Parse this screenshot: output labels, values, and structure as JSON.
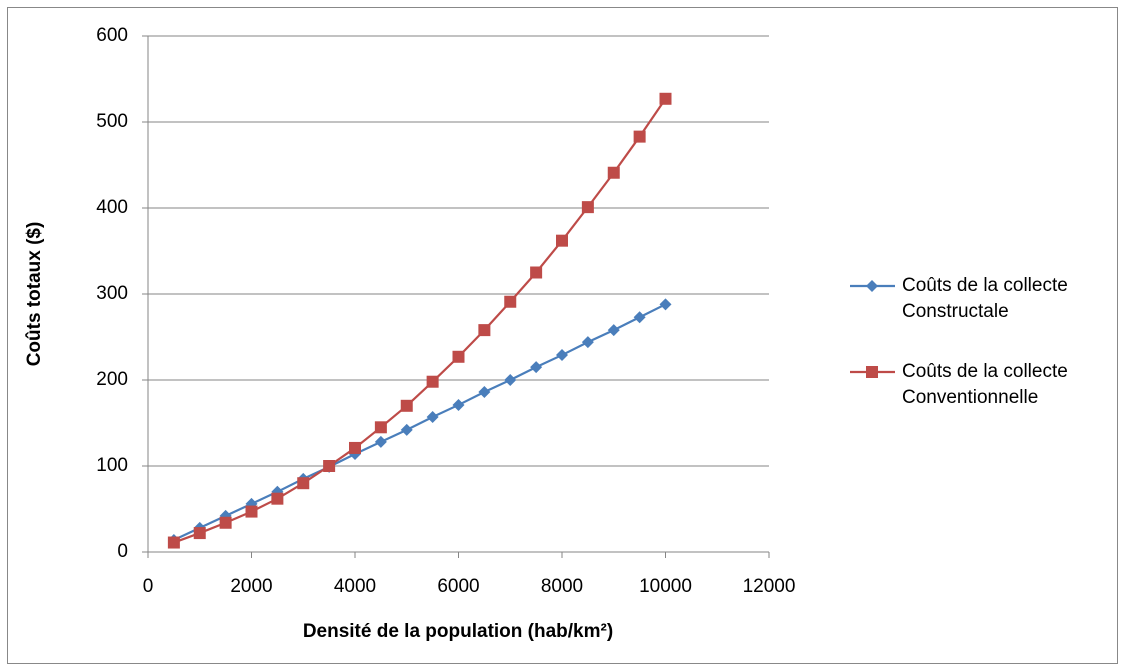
{
  "chart_data": {
    "type": "line",
    "x_label": "Densité de la population (hab/km²)",
    "y_label": "Coûts totaux ($)",
    "x": [
      500,
      1000,
      1500,
      2000,
      2500,
      3000,
      3500,
      4000,
      4500,
      5000,
      5500,
      6000,
      6500,
      7000,
      7500,
      8000,
      8500,
      9000,
      9500,
      10000
    ],
    "series": [
      {
        "name": "Coûts de la collecte Constructale",
        "color": "#4a7ebb",
        "marker": "diamond",
        "values": [
          14,
          28,
          42,
          56,
          70,
          85,
          99,
          114,
          128,
          142,
          157,
          171,
          186,
          200,
          215,
          229,
          244,
          258,
          273,
          288
        ]
      },
      {
        "name": "Coûts de la collecte Conventionnelle",
        "color": "#be4b48",
        "marker": "square",
        "values": [
          11,
          22,
          34,
          47,
          62,
          80,
          100,
          121,
          145,
          170,
          198,
          227,
          258,
          291,
          325,
          362,
          401,
          441,
          483,
          527
        ]
      }
    ],
    "xlim": [
      0,
      12000
    ],
    "xticks": [
      0,
      2000,
      4000,
      6000,
      8000,
      10000,
      12000
    ],
    "ylim": [
      0,
      600
    ],
    "yticks": [
      0,
      100,
      200,
      300,
      400,
      500,
      600
    ],
    "grid": true,
    "legend": "right"
  }
}
